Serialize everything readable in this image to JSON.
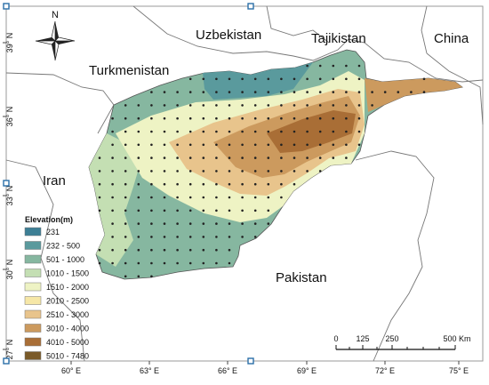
{
  "map": {
    "background_color": "#ffffff",
    "land_color": "#efefef",
    "border_color": "#666666",
    "north_label": "N",
    "countries": [
      {
        "name": "Uzbekistan"
      },
      {
        "name": "Tajikistan"
      },
      {
        "name": "China"
      },
      {
        "name": "Turkmenistan"
      },
      {
        "name": "Iran"
      },
      {
        "name": "Pakistan"
      }
    ],
    "y_axis_labels": [
      "39° N",
      "36° N",
      "33° N",
      "30° N",
      "27° N"
    ],
    "x_axis_labels": [
      "60° E",
      "63° E",
      "66° E",
      "69° E",
      "72° E",
      "75° E"
    ],
    "legend": {
      "title": "Elevation(m)",
      "items": [
        {
          "label": "231",
          "color": "#3d7f95"
        },
        {
          "label": "232 - 500",
          "color": "#5a9a9d"
        },
        {
          "label": "501 - 1000",
          "color": "#86b7a0"
        },
        {
          "label": "1010 - 1500",
          "color": "#c4dfb3"
        },
        {
          "label": "1510 - 2000",
          "color": "#eef3c4"
        },
        {
          "label": "2010 - 2500",
          "color": "#f6e7a7"
        },
        {
          "label": "2510 - 3000",
          "color": "#e8c48c"
        },
        {
          "label": "3010 - 4000",
          "color": "#cc9a5e"
        },
        {
          "label": "4010 - 5000",
          "color": "#a96e36"
        },
        {
          "label": "5010 - 7480",
          "color": "#7a5a28"
        }
      ]
    },
    "scale_bar": {
      "labels": [
        "0",
        "125",
        "250",
        "500 Km"
      ]
    }
  }
}
